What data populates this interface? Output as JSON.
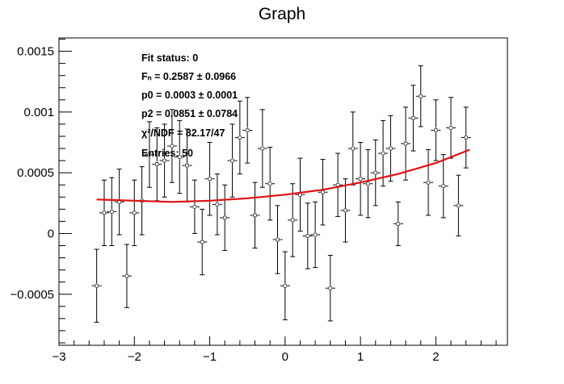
{
  "chart_data": {
    "type": "scatter",
    "title": "Graph",
    "xlabel": "",
    "ylabel": "",
    "xlim": [
      -3.0,
      2.95
    ],
    "ylim": [
      -0.00092,
      0.00161
    ],
    "x_ticks": [
      -3,
      -2,
      -1,
      0,
      1,
      2
    ],
    "x_tick_labels": [
      "−3",
      "−2",
      "−1",
      "0",
      "1",
      "2"
    ],
    "y_ticks": [
      -0.0005,
      0,
      0.0005,
      0.001,
      0.0015
    ],
    "y_tick_labels": [
      "−0.0005",
      "0",
      "0.0005",
      "0.001",
      "0.0015"
    ],
    "grid": false,
    "legend": "none",
    "series": [
      {
        "style": "markers with error bars",
        "color": "#000000",
        "points": [
          {
            "x": -2.5,
            "y": -0.00043,
            "err": 0.0003
          },
          {
            "x": -2.4,
            "y": 0.00017,
            "err": 0.00027
          },
          {
            "x": -2.3,
            "y": 0.00018,
            "err": 0.00028
          },
          {
            "x": -2.2,
            "y": 0.00026,
            "err": 0.00027
          },
          {
            "x": -2.1,
            "y": -0.00035,
            "err": 0.00026
          },
          {
            "x": -2.0,
            "y": 0.00017,
            "err": 0.00027
          },
          {
            "x": -1.9,
            "y": 0.00027,
            "err": 0.00028
          },
          {
            "x": -1.8,
            "y": 0.00065,
            "err": 0.00027
          },
          {
            "x": -1.7,
            "y": 0.00057,
            "err": 0.0003
          },
          {
            "x": -1.6,
            "y": 0.0006,
            "err": 0.0003
          },
          {
            "x": -1.5,
            "y": 0.00072,
            "err": 0.0003
          },
          {
            "x": -1.4,
            "y": 0.00063,
            "err": 0.0003
          },
          {
            "x": -1.3,
            "y": 0.00056,
            "err": 0.0003
          },
          {
            "x": -1.2,
            "y": 0.00022,
            "err": 0.00022
          },
          {
            "x": -1.1,
            "y": -7e-05,
            "err": 0.00027
          },
          {
            "x": -1.0,
            "y": 0.00045,
            "err": 0.0003
          },
          {
            "x": -0.9,
            "y": 0.00024,
            "err": 0.00025
          },
          {
            "x": -0.8,
            "y": 0.00013,
            "err": 0.00027
          },
          {
            "x": -0.7,
            "y": 0.0006,
            "err": 0.0003
          },
          {
            "x": -0.6,
            "y": 0.00079,
            "err": 0.0003
          },
          {
            "x": -0.5,
            "y": 0.00085,
            "err": 0.00027
          },
          {
            "x": -0.4,
            "y": 0.00015,
            "err": 0.00027
          },
          {
            "x": -0.3,
            "y": 0.0007,
            "err": 0.00032
          },
          {
            "x": -0.2,
            "y": 0.00041,
            "err": 0.0003
          },
          {
            "x": -0.1,
            "y": -5e-05,
            "err": 0.00028
          },
          {
            "x": 0.0,
            "y": -0.00043,
            "err": 0.00028
          },
          {
            "x": 0.1,
            "y": 0.00011,
            "err": 0.0003
          },
          {
            "x": 0.2,
            "y": 0.00032,
            "err": 0.0003
          },
          {
            "x": 0.3,
            "y": -2e-05,
            "err": 0.00027
          },
          {
            "x": 0.4,
            "y": -1e-05,
            "err": 0.00027
          },
          {
            "x": 0.5,
            "y": 0.00034,
            "err": 0.00027
          },
          {
            "x": 0.6,
            "y": -0.00045,
            "err": 0.00027
          },
          {
            "x": 0.7,
            "y": 0.0004,
            "err": 0.00026
          },
          {
            "x": 0.8,
            "y": 0.00019,
            "err": 0.00026
          },
          {
            "x": 0.9,
            "y": 0.0007,
            "err": 0.0003
          },
          {
            "x": 1.0,
            "y": 0.00045,
            "err": 0.0003
          },
          {
            "x": 1.1,
            "y": 0.00041,
            "err": 0.00028
          },
          {
            "x": 1.2,
            "y": 0.0005,
            "err": 0.00027
          },
          {
            "x": 1.3,
            "y": 0.00066,
            "err": 0.00027
          },
          {
            "x": 1.4,
            "y": 0.0007,
            "err": 0.00027
          },
          {
            "x": 1.5,
            "y": 8e-05,
            "err": 0.00018
          },
          {
            "x": 1.6,
            "y": 0.00074,
            "err": 0.0003
          },
          {
            "x": 1.7,
            "y": 0.00095,
            "err": 0.00027
          },
          {
            "x": 1.8,
            "y": 0.00113,
            "err": 0.00025
          },
          {
            "x": 1.9,
            "y": 0.00042,
            "err": 0.00027
          },
          {
            "x": 2.0,
            "y": 0.00085,
            "err": 0.00025
          },
          {
            "x": 2.1,
            "y": 0.00039,
            "err": 0.00026
          },
          {
            "x": 2.2,
            "y": 0.00087,
            "err": 0.00025
          },
          {
            "x": 2.3,
            "y": 0.00023,
            "err": 0.00025
          },
          {
            "x": 2.4,
            "y": 0.00079,
            "err": 0.00025
          }
        ]
      },
      {
        "style": "fit curve",
        "color": "#e01010",
        "function": "p0 + p2*x^2",
        "x_range": [
          -2.5,
          2.45
        ],
        "curve": [
          {
            "x": -2.5,
            "y": 0.00028
          },
          {
            "x": -2.0,
            "y": 0.00027
          },
          {
            "x": -1.5,
            "y": 0.00026
          },
          {
            "x": -1.0,
            "y": 0.00027
          },
          {
            "x": -0.5,
            "y": 0.00029
          },
          {
            "x": 0.0,
            "y": 0.00032
          },
          {
            "x": 0.5,
            "y": 0.00036
          },
          {
            "x": 1.0,
            "y": 0.00042
          },
          {
            "x": 1.5,
            "y": 0.00049
          },
          {
            "x": 2.0,
            "y": 0.00058
          },
          {
            "x": 2.45,
            "y": 0.00069
          }
        ]
      }
    ],
    "stats": {
      "fit_status": "Fit status: 0",
      "fn": "Fₙ = 0.2587   ± 0.0966",
      "p0": "p0 = 0.0003   ± 0.0001",
      "p2": "p2 = 0.0851   ± 0.0784",
      "chi2": "χ²/NDF = 82.17/47",
      "entries": "Entries: 50"
    }
  }
}
